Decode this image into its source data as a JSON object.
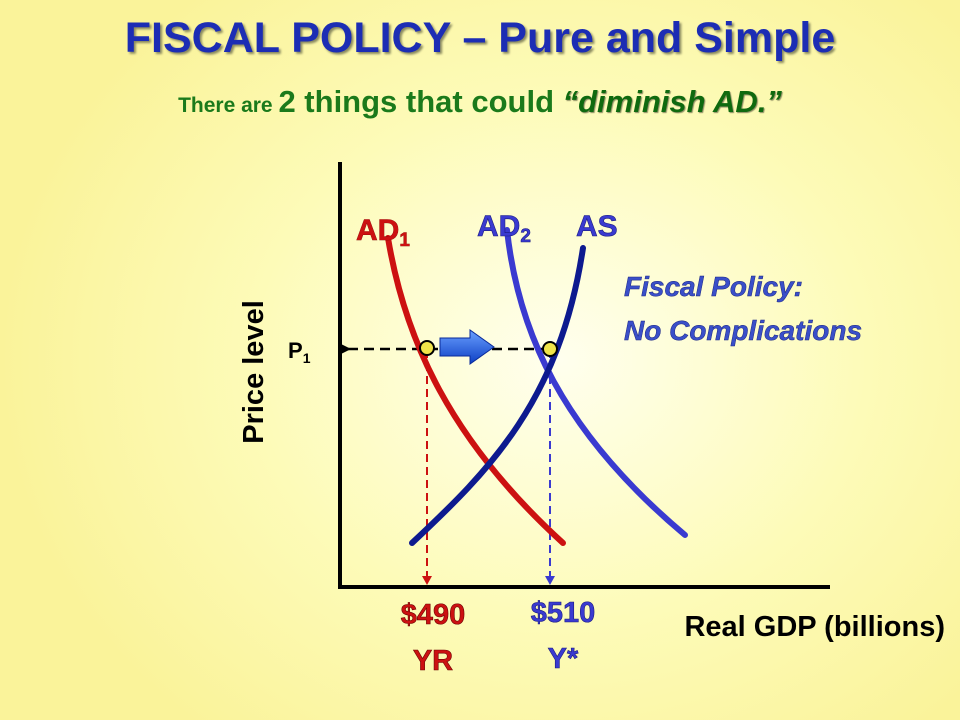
{
  "title": "FISCAL POLICY – Pure and Simple",
  "subtitle": {
    "part1": "There are ",
    "part2": "2 things that could ",
    "part3": "“diminish AD.”"
  },
  "axes": {
    "y_label": "Price level",
    "x_label": "Real GDP (billions)"
  },
  "curves": {
    "ad1": {
      "base": "AD",
      "sub": "1"
    },
    "ad2": {
      "base": "AD",
      "sub": "2"
    },
    "as": "AS"
  },
  "price": {
    "base": "P",
    "sub": "1"
  },
  "ticks": {
    "x1_value": "$490",
    "x1_name": "YR",
    "x2_value": "$510",
    "x2_name": "Y*"
  },
  "note": {
    "line1": "Fiscal Policy:",
    "line2": "No Complications"
  },
  "colors": {
    "ad1": "#cc1111",
    "ad2": "#3a3ad0",
    "as": "#0d1a8f",
    "axis": "#000000",
    "point": "#f0e44a",
    "arrow": "#1c5ee0",
    "note": "#3a4fc9"
  },
  "icons": {
    "shift_arrow": "right-arrow-icon"
  }
}
